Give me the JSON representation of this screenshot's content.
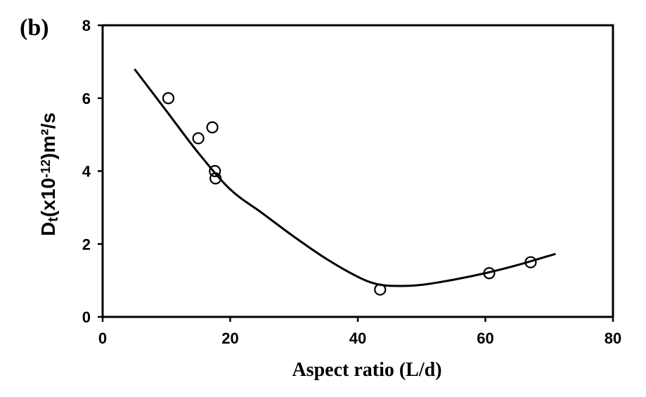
{
  "chart_data": {
    "type": "scatter",
    "panel_label": "(b)",
    "xlabel": "Aspect ratio (L/d)",
    "ylabel": {
      "main": "D",
      "sub": "t",
      "pre": "(x10",
      "sup": "-12",
      "post": ")m²/s"
    },
    "xlim": [
      0,
      80
    ],
    "ylim": [
      0,
      8
    ],
    "xticks": [
      0,
      20,
      40,
      60,
      80
    ],
    "yticks": [
      0,
      2,
      4,
      6,
      8
    ],
    "grid": false,
    "series": [
      {
        "x": [
          10.3,
          15.0,
          17.2,
          17.6,
          17.7,
          43.5,
          60.6,
          67.1
        ],
        "y": [
          6.0,
          4.9,
          5.2,
          4.0,
          3.8,
          0.75,
          1.2,
          1.5
        ]
      }
    ],
    "fit_line": {
      "x": [
        5,
        10,
        15,
        20,
        25,
        30,
        35,
        40,
        43,
        46,
        50,
        55,
        60,
        65,
        71
      ],
      "y": [
        6.8,
        5.65,
        4.5,
        3.5,
        2.85,
        2.2,
        1.6,
        1.1,
        0.9,
        0.85,
        0.88,
        1.02,
        1.2,
        1.42,
        1.73
      ]
    }
  }
}
